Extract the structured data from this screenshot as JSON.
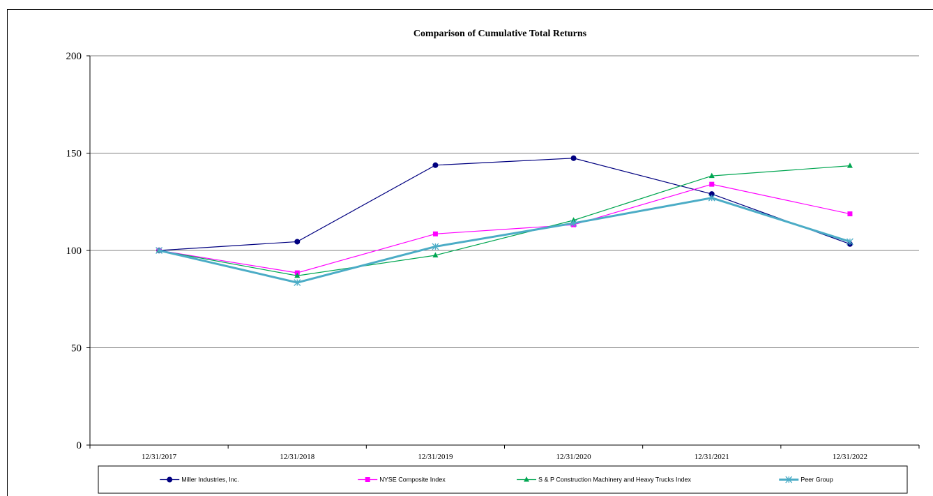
{
  "chart_data": {
    "type": "line",
    "title": "Comparison of Cumulative Total Returns",
    "xlabel": "",
    "ylabel": "",
    "categories": [
      "12/31/2017",
      "12/31/2018",
      "12/31/2019",
      "12/31/2020",
      "12/31/2021",
      "12/31/2022"
    ],
    "ylim": [
      0,
      200
    ],
    "yticks": [
      0,
      50,
      100,
      150,
      200
    ],
    "grid": true,
    "legend_position": "bottom",
    "series": [
      {
        "name": "Miller Industries, Inc.",
        "color": "#000080",
        "marker": "circle",
        "values": [
          100,
          104.5,
          143.8,
          147.4,
          129.0,
          103.3
        ]
      },
      {
        "name": "NYSE Composite Index",
        "color": "#FF00FF",
        "marker": "square",
        "values": [
          100,
          88.5,
          108.5,
          113.2,
          134.0,
          118.8
        ]
      },
      {
        "name": "S & P Construction Machinery and Heavy Trucks Index",
        "color": "#00A651",
        "marker": "triangle",
        "values": [
          100,
          87.0,
          97.5,
          115.5,
          138.3,
          143.5
        ]
      },
      {
        "name": "Peer Group",
        "color": "#4BACC6",
        "marker": "asterisk",
        "values": [
          100,
          83.5,
          102.0,
          114.0,
          127.0,
          104.5
        ]
      }
    ]
  }
}
